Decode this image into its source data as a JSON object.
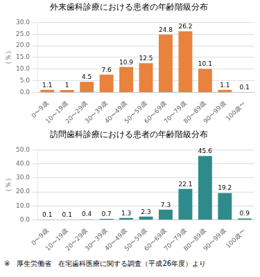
{
  "chart_data": [
    {
      "type": "bar",
      "title": "外来歯科診療における患者の年齢階級分布",
      "ylabel": "（％）",
      "categories": [
        "0〜9歳",
        "10〜19歳",
        "20〜29歳",
        "30〜39歳",
        "40〜49歳",
        "50〜59歳",
        "60〜69歳",
        "70〜79歳",
        "80〜89歳",
        "90〜99歳",
        "100歳〜"
      ],
      "values": [
        1.1,
        1.0,
        4.5,
        7.6,
        10.9,
        12.5,
        24.8,
        26.2,
        10.1,
        1.1,
        0.1
      ],
      "color": "#E8823C",
      "ylim": [
        0,
        30
      ],
      "yticks": [
        {
          "value": 0,
          "label": "0.0"
        },
        {
          "value": 5,
          "label": "5.0"
        },
        {
          "value": 10,
          "label": "10.0"
        },
        {
          "value": 15,
          "label": "15.0"
        },
        {
          "value": 20,
          "label": "20.0"
        },
        {
          "value": 25,
          "label": "25.0"
        },
        {
          "value": 30,
          "label": "30.0"
        }
      ],
      "grid": "y",
      "data_labels": true
    },
    {
      "type": "bar",
      "title": "訪問歯科診療における患者の年齢階級分布",
      "ylabel": "（％）",
      "categories": [
        "0〜9歳",
        "10〜19歳",
        "20〜29歳",
        "30〜39歳",
        "40〜49歳",
        "50〜59歳",
        "60〜69歳",
        "70〜79歳",
        "80〜89歳",
        "90〜99歳",
        "100歳〜"
      ],
      "values": [
        0.1,
        0.1,
        0.4,
        0.7,
        1.3,
        2.3,
        7.3,
        22.1,
        45.6,
        19.2,
        0.9
      ],
      "color": "#2E8B8B",
      "ylim": [
        0,
        50
      ],
      "yticks": [
        {
          "value": 0,
          "label": "0.0"
        },
        {
          "value": 10,
          "label": "10.0"
        },
        {
          "value": 20,
          "label": "20.0"
        },
        {
          "value": 30,
          "label": "30.0"
        },
        {
          "value": 40,
          "label": "40.0"
        },
        {
          "value": 50,
          "label": "50.0"
        }
      ],
      "grid": "y",
      "data_labels": true,
      "annotations": [
        "※　厚生労働省　在宅歯科医療に関する調査（平成26年度）より"
      ]
    }
  ]
}
